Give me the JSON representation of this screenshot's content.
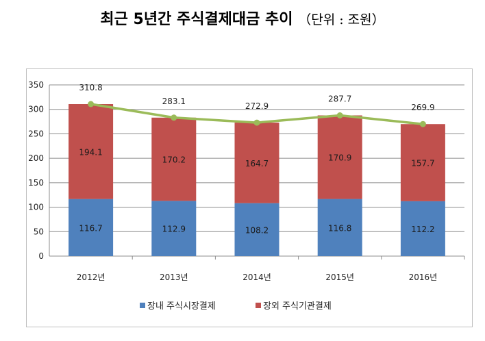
{
  "title": {
    "main": "최근 5년간 주식결제대금 추이",
    "unit": "（단위 : 조원）"
  },
  "chart_data": {
    "type": "bar",
    "stacked": true,
    "categories": [
      "2012년",
      "2013년",
      "2014년",
      "2015년",
      "2016년"
    ],
    "series": [
      {
        "name": "장내 주식시장결제",
        "color": "#4f81bd",
        "values": [
          116.7,
          112.9,
          108.2,
          116.8,
          112.2
        ]
      },
      {
        "name": "장외 주식기관결제",
        "color": "#c0504d",
        "values": [
          194.1,
          170.2,
          164.7,
          170.9,
          157.7
        ]
      }
    ],
    "totals": {
      "type": "line",
      "color": "#9bbb59",
      "values": [
        310.8,
        283.1,
        272.9,
        287.7,
        269.9
      ]
    },
    "ylim": [
      0,
      350
    ],
    "yticks": [
      0,
      50,
      100,
      150,
      200,
      250,
      300,
      350
    ],
    "grid": true,
    "legend": "bottom"
  }
}
